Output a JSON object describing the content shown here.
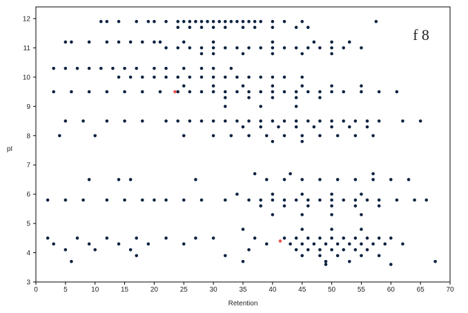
{
  "chart_data": {
    "type": "scatter",
    "annotation": "f 8",
    "xlabel": "Retention",
    "ylabel": "pI",
    "xlim": [
      0,
      70
    ],
    "ylim": [
      3,
      12.4
    ],
    "xticks": [
      0,
      5,
      10,
      15,
      20,
      25,
      30,
      35,
      40,
      45,
      50,
      55,
      60,
      65,
      70
    ],
    "yticks": [
      3,
      4,
      5,
      6,
      7,
      8,
      9,
      10,
      11,
      12
    ],
    "series": [
      {
        "color": "#0d2240",
        "x": [
          11,
          12,
          14,
          17,
          19,
          20,
          22,
          24,
          25,
          26,
          27,
          28,
          29,
          30,
          31,
          32,
          33,
          34,
          35,
          36,
          37,
          38,
          40,
          42,
          45,
          57.5,
          24,
          26,
          28,
          30,
          32,
          35,
          37,
          40,
          44,
          46,
          5,
          6,
          9,
          12,
          14,
          16,
          18,
          20,
          21,
          25,
          30,
          40,
          47,
          50,
          53,
          22,
          24,
          26,
          28,
          30,
          32,
          34,
          36,
          38,
          40,
          42,
          44,
          46,
          48,
          50,
          52,
          55,
          28,
          30,
          35,
          40,
          45,
          50,
          3,
          5,
          7,
          9,
          11,
          13,
          15,
          17,
          20,
          22,
          25,
          28,
          30,
          33,
          14,
          16,
          18,
          20,
          22,
          24,
          26,
          28,
          30,
          32,
          34,
          36,
          38,
          40,
          42,
          45,
          25,
          30,
          35,
          40,
          45,
          50,
          55,
          3,
          6,
          9,
          12,
          15,
          18,
          21,
          24,
          26,
          28,
          30,
          32,
          34,
          36,
          38,
          40,
          42,
          44,
          46,
          48,
          50,
          52,
          55,
          58,
          61,
          32,
          36,
          40,
          44,
          48,
          32,
          38,
          44,
          5,
          8,
          12,
          15,
          18,
          22,
          24,
          26,
          28,
          30,
          32,
          34,
          36,
          38,
          40,
          42,
          44,
          46,
          48,
          50,
          52,
          54,
          56,
          58,
          62,
          65,
          35,
          38,
          41,
          44,
          47,
          50,
          53,
          56,
          4,
          10,
          25,
          30,
          33,
          36,
          39,
          42,
          45,
          48,
          51,
          54,
          57,
          40,
          45,
          37,
          43,
          57,
          9,
          14,
          16,
          27,
          39,
          42,
          45,
          48,
          51,
          54,
          57,
          60,
          63,
          34,
          40,
          45,
          50,
          55,
          2,
          5,
          8,
          12,
          15,
          18,
          20,
          22,
          25,
          28,
          32,
          36,
          38,
          40,
          42,
          44,
          46,
          48,
          50,
          52,
          54,
          56,
          58,
          61,
          64,
          66,
          38,
          42,
          46,
          50,
          54,
          58,
          40,
          45,
          50,
          55,
          35,
          45,
          50,
          55,
          2,
          7,
          12,
          17,
          22,
          27,
          30,
          37,
          42,
          44,
          46,
          48,
          50,
          52,
          54,
          56,
          58,
          60,
          3,
          9,
          14,
          19,
          25,
          39,
          43,
          45,
          47,
          49,
          51,
          53,
          55,
          57,
          59,
          62,
          5,
          10,
          16,
          36,
          44,
          46,
          48,
          50,
          52,
          54,
          56,
          17,
          32,
          45,
          48,
          51,
          55,
          58,
          6,
          35,
          49,
          53,
          67.5,
          49,
          60
        ],
        "values": [
          11.9,
          11.9,
          11.9,
          11.9,
          11.9,
          11.9,
          11.9,
          11.9,
          11.9,
          11.9,
          11.9,
          11.9,
          11.9,
          11.9,
          11.9,
          11.9,
          11.9,
          11.9,
          11.9,
          11.9,
          11.9,
          11.9,
          11.9,
          11.9,
          11.9,
          11.9,
          11.7,
          11.7,
          11.7,
          11.7,
          11.7,
          11.7,
          11.7,
          11.7,
          11.7,
          11.7,
          11.2,
          11.2,
          11.2,
          11.2,
          11.2,
          11.2,
          11.2,
          11.2,
          11.2,
          11.2,
          11.2,
          11.2,
          11.2,
          11.2,
          11.2,
          11.0,
          11.0,
          11.0,
          11.0,
          11.0,
          11.0,
          11.0,
          11.0,
          11.0,
          11.0,
          11.0,
          11.0,
          11.0,
          11.0,
          11.0,
          11.0,
          11.0,
          10.8,
          10.8,
          10.8,
          10.8,
          10.8,
          10.8,
          10.3,
          10.3,
          10.3,
          10.3,
          10.3,
          10.3,
          10.3,
          10.3,
          10.3,
          10.3,
          10.3,
          10.3,
          10.3,
          10.3,
          10.0,
          10.0,
          10.0,
          10.0,
          10.0,
          10.0,
          10.0,
          10.0,
          10.0,
          10.0,
          10.0,
          10.0,
          10.0,
          10.0,
          10.0,
          10.0,
          9.7,
          9.7,
          9.7,
          9.7,
          9.7,
          9.7,
          9.7,
          9.5,
          9.5,
          9.5,
          9.5,
          9.5,
          9.5,
          9.5,
          9.5,
          9.5,
          9.5,
          9.5,
          9.5,
          9.5,
          9.5,
          9.5,
          9.5,
          9.5,
          9.5,
          9.5,
          9.5,
          9.5,
          9.5,
          9.5,
          9.5,
          9.5,
          9.3,
          9.3,
          9.3,
          9.3,
          9.3,
          9.0,
          9.0,
          9.0,
          8.5,
          8.5,
          8.5,
          8.5,
          8.5,
          8.5,
          8.5,
          8.5,
          8.5,
          8.5,
          8.5,
          8.5,
          8.5,
          8.5,
          8.5,
          8.5,
          8.5,
          8.5,
          8.5,
          8.5,
          8.5,
          8.5,
          8.5,
          8.5,
          8.5,
          8.5,
          8.3,
          8.3,
          8.3,
          8.3,
          8.3,
          8.3,
          8.3,
          8.3,
          8.0,
          8.0,
          8.0,
          8.0,
          8.0,
          8.0,
          8.0,
          8.0,
          8.0,
          8.0,
          8.0,
          8.0,
          8.0,
          7.8,
          7.8,
          6.7,
          6.7,
          6.7,
          6.5,
          6.5,
          6.5,
          6.5,
          6.5,
          6.5,
          6.5,
          6.5,
          6.5,
          6.5,
          6.5,
          6.5,
          6.5,
          6.0,
          6.0,
          6.0,
          6.0,
          6.0,
          5.8,
          5.8,
          5.8,
          5.8,
          5.8,
          5.8,
          5.8,
          5.8,
          5.8,
          5.8,
          5.8,
          5.8,
          5.8,
          5.8,
          5.8,
          5.8,
          5.8,
          5.8,
          5.8,
          5.8,
          5.8,
          5.8,
          5.8,
          5.8,
          5.8,
          5.8,
          5.6,
          5.6,
          5.6,
          5.6,
          5.6,
          5.6,
          5.3,
          5.3,
          5.3,
          5.3,
          4.8,
          4.8,
          4.8,
          4.8,
          4.5,
          4.5,
          4.5,
          4.5,
          4.5,
          4.5,
          4.5,
          4.5,
          4.5,
          4.5,
          4.5,
          4.5,
          4.5,
          4.5,
          4.5,
          4.5,
          4.5,
          4.5,
          4.3,
          4.3,
          4.3,
          4.3,
          4.3,
          4.3,
          4.3,
          4.3,
          4.3,
          4.3,
          4.3,
          4.3,
          4.3,
          4.3,
          4.3,
          4.3,
          4.1,
          4.1,
          4.1,
          4.1,
          4.1,
          4.1,
          4.1,
          4.1,
          4.1,
          4.1,
          4.1,
          3.9,
          3.9,
          3.9,
          3.9,
          3.9,
          3.9,
          3.9,
          3.7,
          3.7,
          3.7,
          3.7,
          3.7,
          3.6,
          3.6
        ]
      },
      {
        "color": "#e8554e",
        "x": [
          23.5,
          41.3
        ],
        "values": [
          9.5,
          4.4
        ]
      }
    ]
  }
}
